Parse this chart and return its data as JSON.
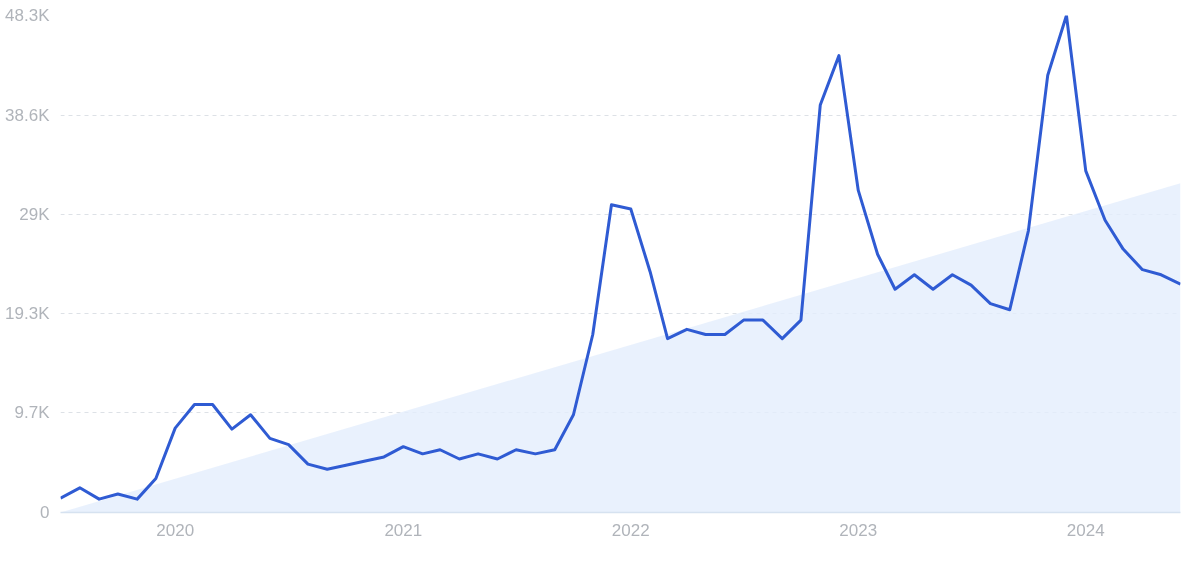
{
  "chart_data": {
    "type": "line",
    "xlim": [
      "2019-07",
      "2024-06"
    ],
    "ylim": [
      0,
      48300
    ],
    "xticks": [
      "2020",
      "2021",
      "2022",
      "2023",
      "2024"
    ],
    "yticks": [
      0,
      {
        "value": 9700,
        "label": "9.7K"
      },
      {
        "value": 19300,
        "label": "19.3K"
      },
      {
        "value": 29000,
        "label": "29K"
      },
      {
        "value": 38600,
        "label": "38.6K"
      },
      {
        "value": 48300,
        "label": "48.3K"
      }
    ],
    "grid": "y",
    "marker": "none",
    "line_style": "solid",
    "series": [
      {
        "type": "area",
        "color": "#e3eefc",
        "x": [
          "2019-07",
          "2024-06"
        ],
        "values": [
          0,
          32000
        ]
      },
      {
        "color": "#2f5bd3",
        "x": [
          "2019-07",
          "2019-08",
          "2019-09",
          "2019-10",
          "2019-11",
          "2019-12",
          "2020-01",
          "2020-02",
          "2020-03",
          "2020-04",
          "2020-05",
          "2020-06",
          "2020-07",
          "2020-08",
          "2020-09",
          "2020-10",
          "2020-11",
          "2020-12",
          "2021-01",
          "2021-02",
          "2021-03",
          "2021-04",
          "2021-05",
          "2021-06",
          "2021-07",
          "2021-08",
          "2021-09",
          "2021-10",
          "2021-11",
          "2021-12",
          "2022-01",
          "2022-02",
          "2022-03",
          "2022-04",
          "2022-05",
          "2022-06",
          "2022-07",
          "2022-08",
          "2022-09",
          "2022-10",
          "2022-11",
          "2022-12",
          "2023-01",
          "2023-02",
          "2023-03",
          "2023-04",
          "2023-05",
          "2023-06",
          "2023-07",
          "2023-08",
          "2023-09",
          "2023-10",
          "2023-11",
          "2023-12",
          "2024-01",
          "2024-02",
          "2024-03",
          "2024-04",
          "2024-05",
          "2024-06"
        ],
        "values": [
          1400,
          2400,
          1300,
          1800,
          1300,
          3300,
          8200,
          10500,
          10500,
          8100,
          9500,
          7200,
          6600,
          4700,
          4200,
          4600,
          5000,
          5400,
          6400,
          5700,
          6100,
          5200,
          5700,
          5200,
          6100,
          5700,
          6100,
          9500,
          17300,
          29900,
          29500,
          23400,
          16900,
          17800,
          17300,
          17300,
          18700,
          18700,
          16900,
          18700,
          39600,
          44400,
          31300,
          25100,
          21700,
          23100,
          21700,
          23100,
          22100,
          20300,
          19700,
          27400,
          42500,
          48300,
          33200,
          28400,
          25600,
          23600,
          23100,
          22200
        ]
      }
    ]
  }
}
